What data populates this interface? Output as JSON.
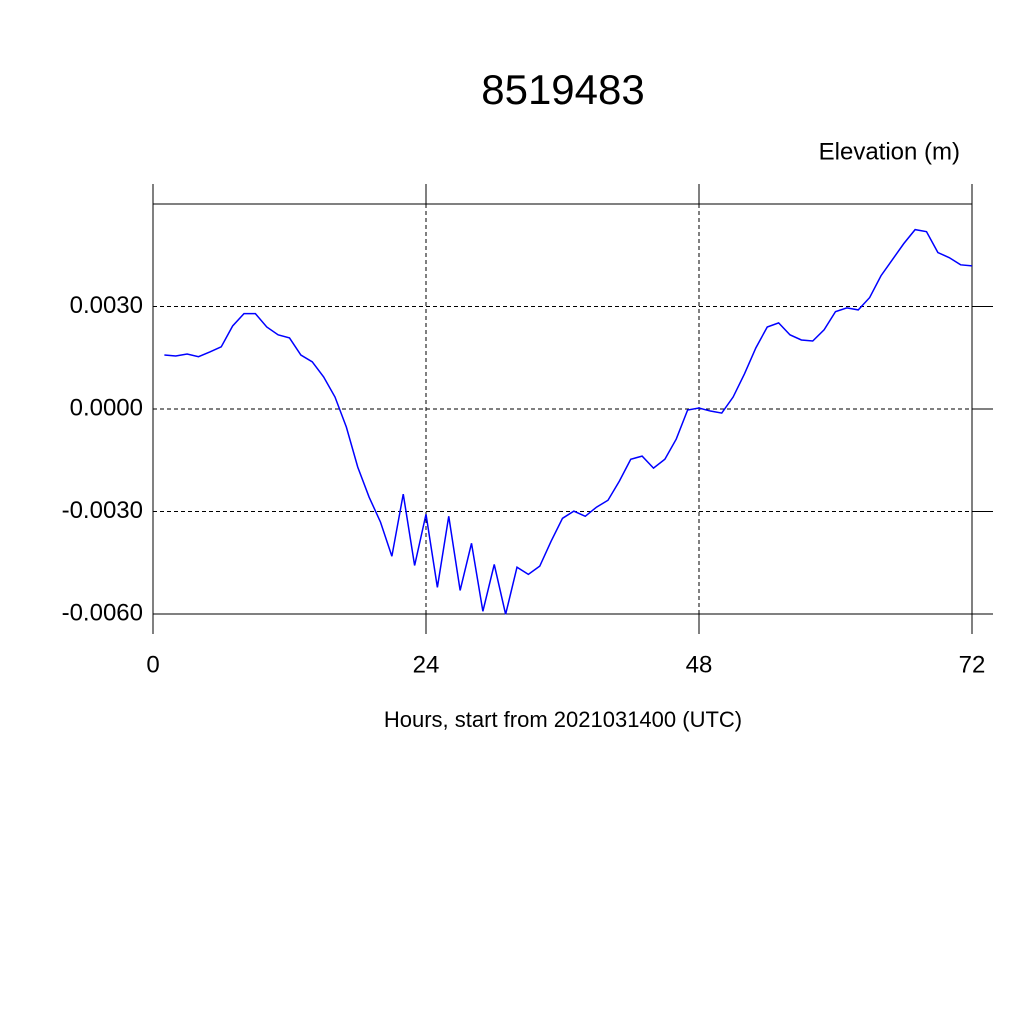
{
  "chart_data": {
    "type": "line",
    "title": "8519483",
    "subtitle": "Elevation (m)",
    "x_label": "Hours, start from 2021031400 (UTC)",
    "x": [
      1,
      2,
      3,
      4,
      5,
      6,
      7,
      8,
      9,
      10,
      11,
      12,
      13,
      14,
      15,
      16,
      17,
      18,
      19,
      20,
      21,
      22,
      23,
      24,
      25,
      26,
      27,
      28,
      29,
      30,
      31,
      32,
      33,
      34,
      35,
      36,
      37,
      38,
      39,
      40,
      41,
      42,
      43,
      44,
      45,
      46,
      47,
      48,
      49,
      50,
      51,
      52,
      53,
      54,
      55,
      56,
      57,
      58,
      59,
      60,
      61,
      62,
      63,
      64,
      65,
      66,
      67,
      68,
      69,
      70,
      71,
      72
    ],
    "series": [
      {
        "name": "Elevation",
        "color": "#0000ff",
        "values": [
          0.00158,
          0.00155,
          0.00161,
          0.00153,
          0.00167,
          0.00182,
          0.00243,
          0.00279,
          0.00279,
          0.0024,
          0.00217,
          0.00208,
          0.00158,
          0.00138,
          0.00094,
          0.00035,
          -0.00053,
          -0.0017,
          -0.00258,
          -0.00331,
          -0.00431,
          -0.00249,
          -0.00458,
          -0.00308,
          -0.00522,
          -0.00314,
          -0.00531,
          -0.00393,
          -0.00592,
          -0.00455,
          -0.00601,
          -0.00463,
          -0.00484,
          -0.0046,
          -0.00387,
          -0.0032,
          -0.00299,
          -0.00314,
          -0.00287,
          -0.00267,
          -0.00211,
          -0.00147,
          -0.00138,
          -0.00173,
          -0.00147,
          -0.00088,
          -3e-05,
          3e-05,
          -6e-05,
          -0.00012,
          0.00035,
          0.00103,
          0.00179,
          0.0024,
          0.00252,
          0.00217,
          0.00202,
          0.00199,
          0.00232,
          0.00285,
          0.00296,
          0.0029,
          0.00326,
          0.0039,
          0.00437,
          0.00484,
          0.00525,
          0.00519,
          0.00458,
          0.00443,
          0.00422,
          0.00419
        ]
      }
    ],
    "xlim": [
      0,
      72
    ],
    "xticks": [
      0,
      24,
      48,
      72
    ],
    "ylim": [
      -0.006,
      0.006
    ],
    "yticks": [
      {
        "value": -0.006,
        "label": "-0.0060"
      },
      {
        "value": -0.003,
        "label": "-0.0030"
      },
      {
        "value": 0,
        "label": "0.0000"
      },
      {
        "value": 0.003,
        "label": "0.0030"
      }
    ],
    "grid": true
  }
}
